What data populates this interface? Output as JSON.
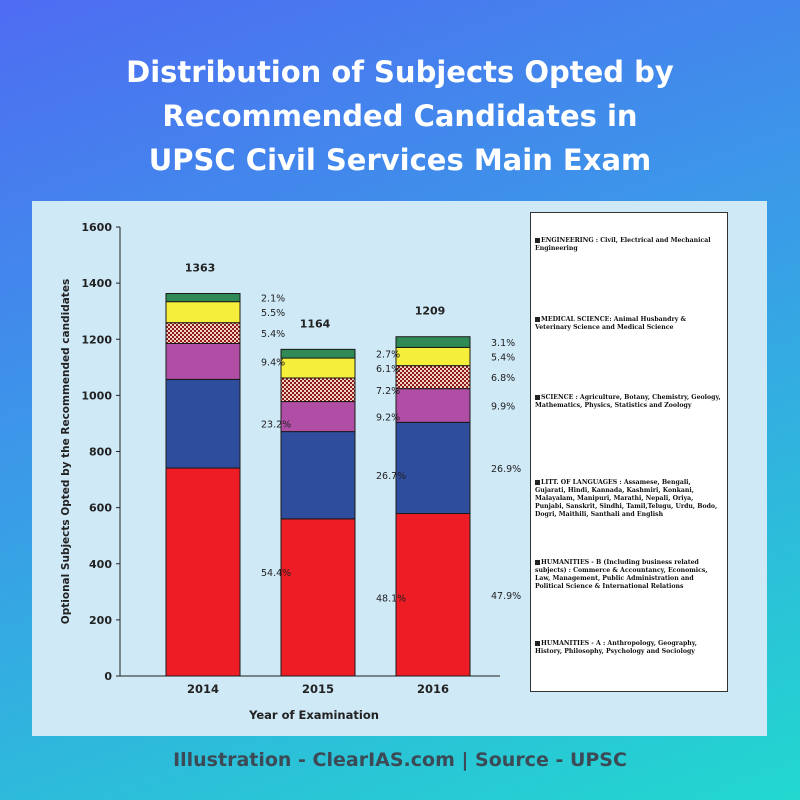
{
  "title_lines": [
    "Distribution of Subjects Opted by",
    "Recommended Candidates in",
    "UPSC Civil Services Main Exam"
  ],
  "footer": "Illustration - ClearIAS.com | Source - UPSC",
  "chart_data": {
    "type": "bar",
    "stacked": true,
    "title": "",
    "xlabel": "Year of Examination",
    "ylabel": "Optional Subjects Opted by the Recommended candidates",
    "ylim": [
      0,
      1600
    ],
    "yticks": [
      0,
      200,
      400,
      600,
      800,
      1000,
      1200,
      1400,
      1600
    ],
    "categories": [
      "2014",
      "2015",
      "2016"
    ],
    "totals": [
      1363,
      1164,
      1209
    ],
    "series": [
      {
        "name": "HUMANITIES - A :  Anthropology, Geography, History,  Philosophy, Psychology and Sociology",
        "color": "#ee1c25",
        "pattern": "solid",
        "values": [
          741,
          560,
          579
        ],
        "percent_labels": [
          "54.4%",
          "48.1%",
          "47.9%"
        ]
      },
      {
        "name": "HUMANITIES - B (Including business related subjects) : Commerce & Accountancy, Economics, Law, Management, Public Administration and Political Science & International Relations",
        "color": "#2e4d9c",
        "pattern": "solid",
        "values": [
          316,
          311,
          325
        ],
        "percent_labels": [
          "23.2%",
          "26.7%",
          "26.9%"
        ]
      },
      {
        "name": "LITT. OF LANGUAGES : Assamese,  Bengali, Gujarati, Hindi, Kannada, Kashmiri,  Konkani, Malayalam, Manipuri, Marathi, Nepali, Oriya, Punjabi, Sanskrit, Sindhi, Tamil,Telugu, Urdu, Bodo, Dogri, Maithili, Santhali and English",
        "color": "#b04ea6",
        "pattern": "solid",
        "values": [
          128,
          107,
          120
        ],
        "percent_labels": [
          "9.4%",
          "9.2%",
          "9.9%"
        ]
      },
      {
        "name": "SCIENCE  : Agriculture,   Botany,    Chemistry, Geology,   Mathematics, Physics, Statistics and Zoology",
        "color": "#8b1a1a",
        "pattern": "checker",
        "values": [
          74,
          84,
          82
        ],
        "percent_labels": [
          "5.4%",
          "7.2%",
          "6.8%"
        ]
      },
      {
        "name": "MEDICAL SCIENCE: Animal Husbandry & Veterinary Science and Medical Science",
        "color": "#f5ee3a",
        "pattern": "solid",
        "values": [
          75,
          71,
          65
        ],
        "percent_labels": [
          "5.5%",
          "6.1%",
          "5.4%"
        ]
      },
      {
        "name": "ENGINEERING :  Civil, Electrical and Mechanical Engineering",
        "color": "#2f8a56",
        "pattern": "solid",
        "values": [
          29,
          31,
          38
        ],
        "percent_labels": [
          "2.1%",
          "2.7%",
          "3.1%"
        ]
      }
    ],
    "grid": false,
    "legend_position": "right"
  }
}
